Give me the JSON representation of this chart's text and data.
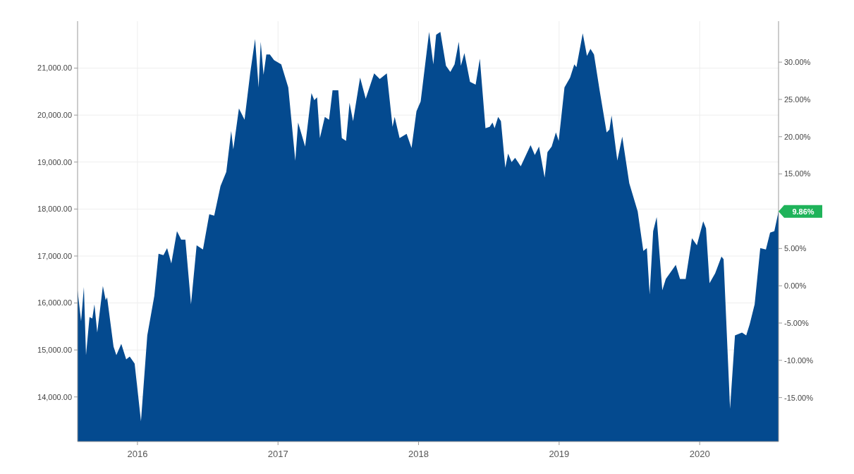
{
  "chart_data": {
    "type": "area",
    "x": [
      2015.574,
      2015.599,
      2015.619,
      2015.634,
      2015.659,
      2015.679,
      2015.694,
      2015.714,
      2015.754,
      2015.774,
      2015.784,
      2015.83,
      2015.85,
      2015.885,
      2015.92,
      2015.945,
      2015.98,
      2016.025,
      2016.07,
      2016.12,
      2016.15,
      2016.185,
      2016.211,
      2016.241,
      2016.281,
      2016.311,
      2016.341,
      2016.381,
      2016.421,
      2016.466,
      2016.511,
      2016.546,
      2016.591,
      2016.632,
      2016.667,
      2016.682,
      2016.722,
      2016.762,
      2016.802,
      2016.837,
      2016.862,
      2016.877,
      2016.897,
      2016.917,
      2016.942,
      2016.972,
      2017.023,
      2017.073,
      2017.123,
      2017.143,
      2017.193,
      2017.238,
      2017.258,
      2017.278,
      2017.298,
      2017.333,
      2017.363,
      2017.388,
      2017.429,
      2017.454,
      2017.484,
      2017.509,
      2017.534,
      2017.584,
      2017.624,
      2017.684,
      2017.724,
      2017.774,
      2017.815,
      2017.83,
      2017.865,
      2017.915,
      2017.95,
      2017.985,
      2018.015,
      2018.075,
      2018.105,
      2018.125,
      2018.155,
      2018.195,
      2018.226,
      2018.256,
      2018.286,
      2018.301,
      2018.326,
      2018.366,
      2018.406,
      2018.436,
      2018.476,
      2018.506,
      2018.526,
      2018.541,
      2018.566,
      2018.586,
      2018.617,
      2018.637,
      2018.662,
      2018.687,
      2018.727,
      2018.797,
      2018.827,
      2018.857,
      2018.897,
      2018.917,
      2018.947,
      2018.977,
      2018.997,
      2019.038,
      2019.078,
      2019.108,
      2019.123,
      2019.168,
      2019.198,
      2019.223,
      2019.248,
      2019.288,
      2019.338,
      2019.358,
      2019.373,
      2019.414,
      2019.449,
      2019.499,
      2019.559,
      2019.599,
      2019.624,
      2019.644,
      2019.669,
      2019.694,
      2019.734,
      2019.759,
      2019.83,
      2019.86,
      2019.9,
      2019.945,
      2019.98,
      2020.025,
      2020.045,
      2020.07,
      2020.11,
      2020.155,
      2020.17,
      2020.216,
      2020.251,
      2020.301,
      2020.331,
      2020.356,
      2020.391,
      2020.431,
      2020.471,
      2020.501,
      2020.531,
      2020.561
    ],
    "series": [
      {
        "color": "#044a8f",
        "values": [
          16270,
          15610,
          16340,
          14890,
          15700,
          15670,
          15970,
          15370,
          16360,
          16060,
          16120,
          15070,
          14890,
          15130,
          14800,
          14860,
          14710,
          13480,
          15310,
          16150,
          17050,
          17020,
          17170,
          16840,
          17530,
          17350,
          17350,
          15970,
          17230,
          17140,
          17890,
          17860,
          18490,
          18790,
          19660,
          19270,
          20140,
          19900,
          20890,
          21620,
          20590,
          21560,
          20860,
          21290,
          21290,
          21170,
          21080,
          20590,
          19030,
          19840,
          19330,
          20470,
          20320,
          20380,
          19510,
          19960,
          19900,
          20530,
          20530,
          19510,
          19450,
          20260,
          19870,
          20800,
          20350,
          20890,
          20770,
          20890,
          19750,
          19960,
          19510,
          19600,
          19300,
          20080,
          20290,
          21770,
          21080,
          21710,
          21770,
          21050,
          20920,
          21080,
          21560,
          21050,
          21320,
          20710,
          20650,
          21200,
          19720,
          19750,
          19840,
          19720,
          19960,
          19870,
          18880,
          19180,
          19000,
          19090,
          18910,
          19360,
          19150,
          19330,
          18670,
          19210,
          19330,
          19630,
          19450,
          20590,
          20800,
          21080,
          21020,
          21740,
          21260,
          21410,
          21290,
          20530,
          19630,
          19690,
          19990,
          19030,
          19540,
          18550,
          17950,
          17110,
          17170,
          16180,
          17530,
          17830,
          16270,
          16510,
          16810,
          16510,
          16510,
          17380,
          17230,
          17740,
          17590,
          16420,
          16630,
          16990,
          16930,
          13750,
          15310,
          15370,
          15310,
          15550,
          15970,
          17170,
          17140,
          17500,
          17530,
          17950
        ]
      }
    ],
    "xlim": [
      2015.574,
      2020.561
    ],
    "xticks": [
      2016,
      2017,
      2018,
      2019,
      2020
    ],
    "ylim": [
      13050,
      22000
    ],
    "yticks": [
      {
        "value": 14000,
        "label": "14,000.00"
      },
      {
        "value": 15000,
        "label": "15,000.00"
      },
      {
        "value": 16000,
        "label": "16,000.00"
      },
      {
        "value": 17000,
        "label": "17,000.00"
      },
      {
        "value": 18000,
        "label": "18,000.00"
      },
      {
        "value": 19000,
        "label": "19,000.00"
      },
      {
        "value": 20000,
        "label": "20,000.00"
      },
      {
        "value": 21000,
        "label": "21,000.00"
      }
    ],
    "y2lim": [
      -20.9,
      35.5
    ],
    "y2ticks": [
      {
        "value": -15,
        "label": "-15.00%"
      },
      {
        "value": -10,
        "label": "-10.00%"
      },
      {
        "value": -5,
        "label": "-5.00%"
      },
      {
        "value": 0,
        "label": "0.00%"
      },
      {
        "value": 5,
        "label": "5.00%"
      },
      {
        "value": 10,
        "label": null
      },
      {
        "value": 15,
        "label": "15.00%"
      },
      {
        "value": 20,
        "label": "20.00%"
      },
      {
        "value": 25,
        "label": "25.00%"
      },
      {
        "value": 30,
        "label": "30.00%"
      }
    ],
    "grid": true,
    "annotations": [
      {
        "text": "9.86%",
        "x": 2020.561,
        "y": 17950
      }
    ]
  }
}
